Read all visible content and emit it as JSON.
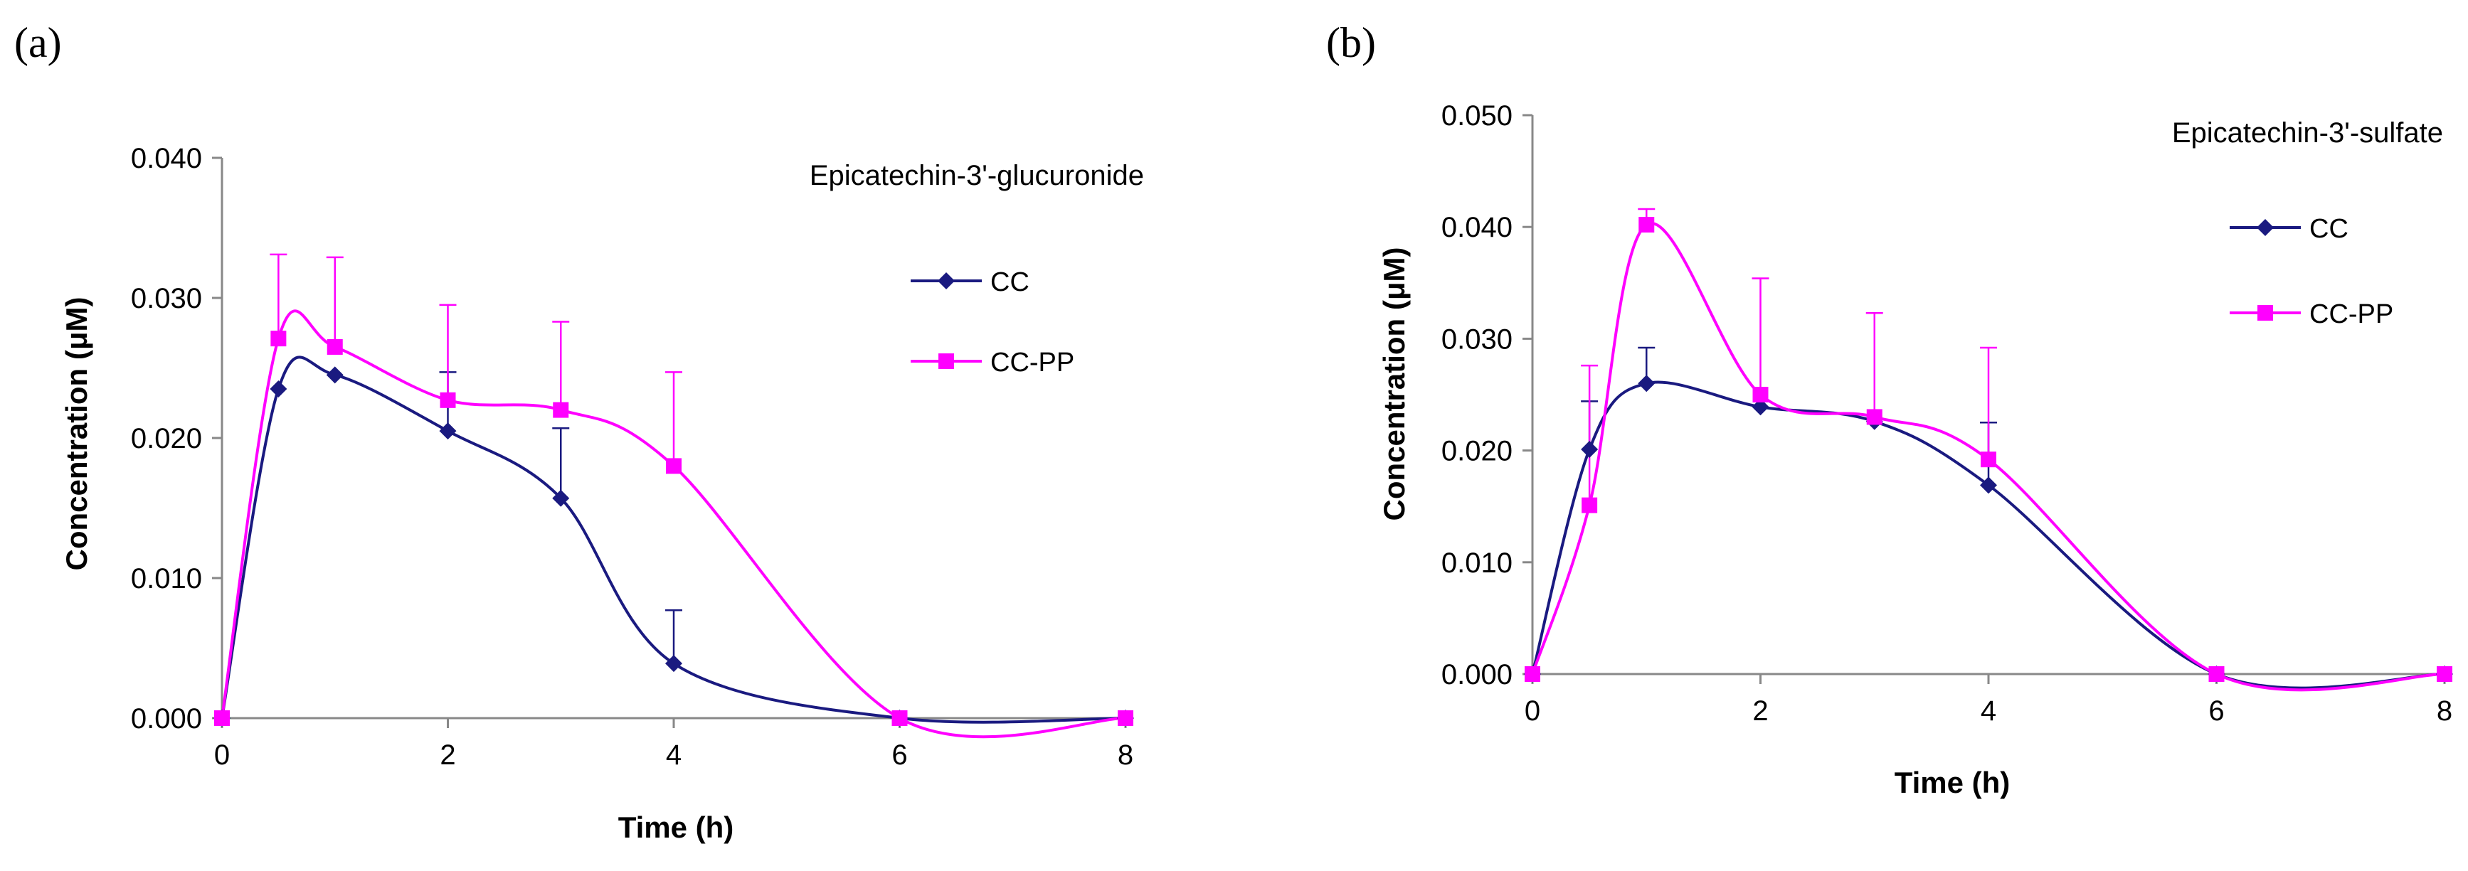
{
  "chart_data": [
    {
      "type": "line",
      "panel_label": "(a)",
      "title": "Epicatechin-3'-glucuronide",
      "xlabel": "Time (h)",
      "ylabel": "Concentration (μM)",
      "xlim": [
        0,
        8
      ],
      "ylim": [
        0,
        0.04
      ],
      "x_ticks": [
        0,
        2,
        4,
        6,
        8
      ],
      "x_tick_labels": [
        "0",
        "2",
        "4",
        "6",
        "8"
      ],
      "y_ticks": [
        0,
        0.01,
        0.02,
        0.03,
        0.04
      ],
      "y_tick_labels": [
        "0.000",
        "0.010",
        "0.020",
        "0.030",
        "0.040"
      ],
      "grid": false,
      "legend_position": "right",
      "series": [
        {
          "name": "CC",
          "color": "#1a1a80",
          "marker": "diamond",
          "x": [
            0,
            0.5,
            1,
            2,
            3,
            4,
            6,
            8
          ],
          "y": [
            0.0,
            0.0235,
            0.0245,
            0.0205,
            0.0157,
            0.0039,
            0.0,
            0.0
          ],
          "error_upper": [
            null,
            null,
            null,
            0.0247,
            0.0207,
            0.0077,
            null,
            null
          ]
        },
        {
          "name": "CC-PP",
          "color": "#ff00ff",
          "marker": "square",
          "x": [
            0,
            0.5,
            1,
            2,
            3,
            4,
            6,
            8
          ],
          "y": [
            0.0,
            0.0271,
            0.0265,
            0.0227,
            0.022,
            0.018,
            0.0,
            0.0
          ],
          "error_upper": [
            null,
            0.0331,
            0.0329,
            0.0295,
            0.0283,
            0.0247,
            null,
            null
          ]
        }
      ]
    },
    {
      "type": "line",
      "panel_label": "(b)",
      "title": "Epicatechin-3'-sulfate",
      "xlabel": "Time (h)",
      "ylabel": "Concentration (μM)",
      "xlim": [
        0,
        8
      ],
      "ylim": [
        0,
        0.05
      ],
      "x_ticks": [
        0,
        2,
        4,
        6,
        8
      ],
      "x_tick_labels": [
        "0",
        "2",
        "4",
        "6",
        "8"
      ],
      "y_ticks": [
        0,
        0.01,
        0.02,
        0.03,
        0.04,
        0.05
      ],
      "y_tick_labels": [
        "0.000",
        "0.010",
        "0.020",
        "0.030",
        "0.040",
        "0.050"
      ],
      "grid": false,
      "legend_position": "right",
      "series": [
        {
          "name": "CC",
          "color": "#1a1a80",
          "marker": "diamond",
          "x": [
            0,
            0.5,
            1,
            2,
            3,
            4,
            6,
            8
          ],
          "y": [
            0.0,
            0.0201,
            0.026,
            0.0239,
            0.0226,
            0.0169,
            0.0,
            0.0
          ],
          "error_upper": [
            null,
            0.0244,
            0.0292,
            null,
            null,
            0.0225,
            null,
            null
          ]
        },
        {
          "name": "CC-PP",
          "color": "#ff00ff",
          "marker": "square",
          "x": [
            0,
            0.5,
            1,
            2,
            3,
            4,
            6,
            8
          ],
          "y": [
            0.0,
            0.0151,
            0.0402,
            0.025,
            0.023,
            0.0192,
            0.0,
            0.0
          ],
          "error_upper": [
            null,
            0.0276,
            0.0416,
            0.0354,
            0.0323,
            0.0292,
            null,
            null
          ]
        }
      ]
    }
  ]
}
